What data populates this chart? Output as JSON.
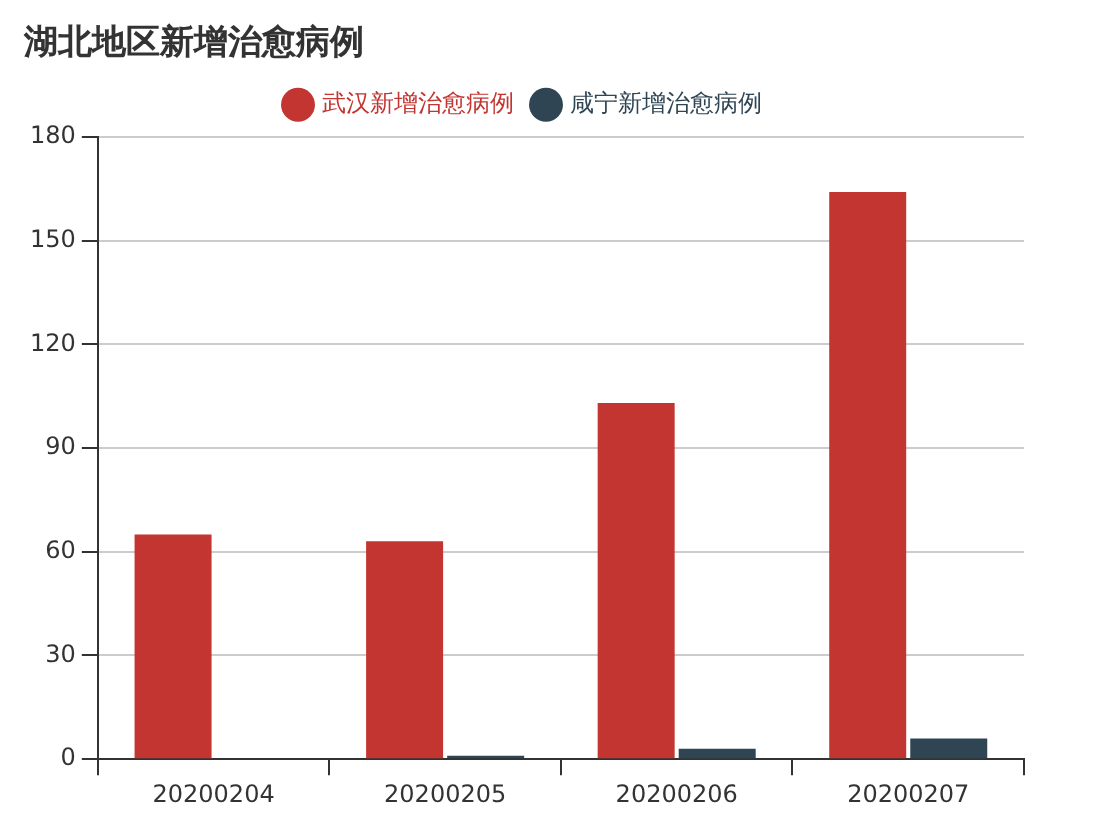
{
  "chart_data": {
    "type": "bar",
    "title": "湖北地区新增治愈病例",
    "categories": [
      "20200204",
      "20200205",
      "20200206",
      "20200207"
    ],
    "series": [
      {
        "name": "武汉新增治愈病例",
        "color": "#c23531",
        "values": [
          65,
          63,
          103,
          164
        ]
      },
      {
        "name": "咸宁新增治愈病例",
        "color": "#2f4554",
        "values": [
          0,
          1,
          3,
          6
        ]
      }
    ],
    "ylim": [
      0,
      180
    ],
    "yticks": [
      0,
      30,
      60,
      90,
      120,
      150,
      180
    ],
    "grid": "y",
    "legend": "top"
  }
}
